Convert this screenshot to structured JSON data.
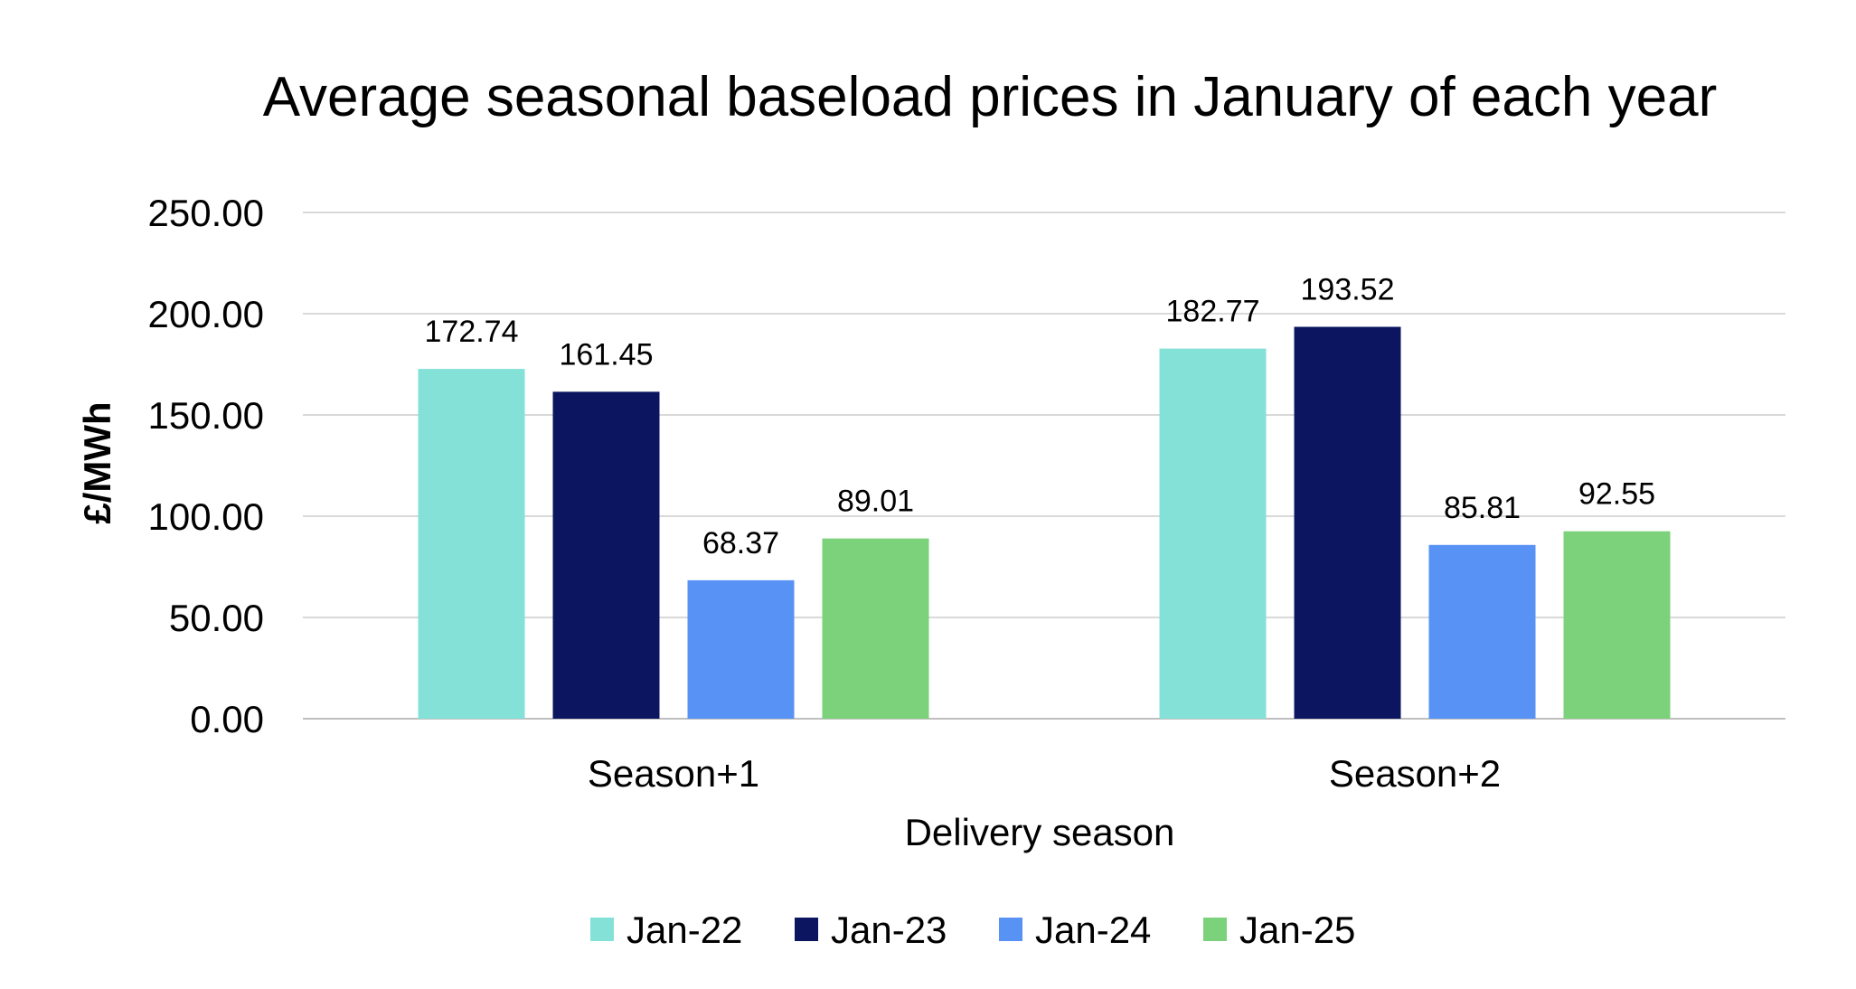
{
  "chart_data": {
    "type": "bar",
    "title": "Average seasonal baseload prices in January of each year",
    "xlabel": "Delivery season",
    "ylabel": "£/MWh",
    "categories": [
      "Season+1",
      "Season+2"
    ],
    "ylim": [
      0,
      250
    ],
    "yticks": [
      "0.00",
      "50.00",
      "100.00",
      "150.00",
      "200.00",
      "250.00"
    ],
    "grid": true,
    "legend_position": "bottom",
    "series": [
      {
        "name": "Jan-22",
        "color": "#84E1D8",
        "values": [
          172.74,
          182.77
        ],
        "labels": [
          "172.74",
          "182.77"
        ]
      },
      {
        "name": "Jan-23",
        "color": "#0C1660",
        "values": [
          161.45,
          193.52
        ],
        "labels": [
          "161.45",
          "193.52"
        ]
      },
      {
        "name": "Jan-24",
        "color": "#5892F4",
        "values": [
          68.37,
          85.81
        ],
        "labels": [
          "68.37",
          "85.81"
        ]
      },
      {
        "name": "Jan-25",
        "color": "#7BD27A",
        "values": [
          89.01,
          92.55
        ],
        "labels": [
          "89.01",
          "92.55"
        ]
      }
    ]
  }
}
